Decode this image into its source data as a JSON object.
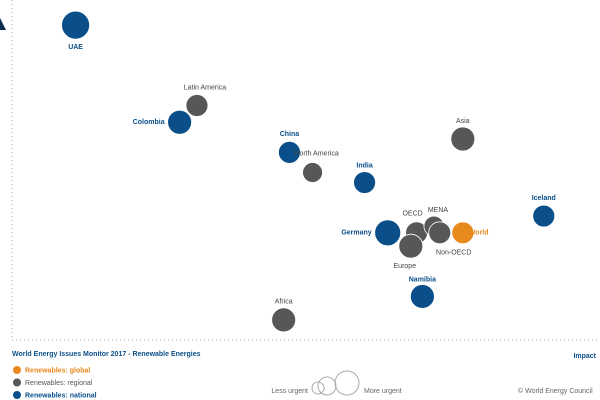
{
  "chart_data": {
    "type": "scatter",
    "title": "World Energy Issues Monitor 2017 - Renewable Energies",
    "x_label": "Impact",
    "size_legend": {
      "low": "Less urgent",
      "high": "More urgent"
    },
    "source": "© World Energy Council",
    "xlim": [
      0,
      10
    ],
    "ylim": [
      0,
      10
    ],
    "series": [
      {
        "name": "Renewables: global",
        "color": "#e8891d",
        "labels": [
          "World"
        ],
        "x": [
          7.8
        ],
        "values": [
          3.2
        ],
        "sizes": [
          11
        ]
      },
      {
        "name": "Renewables: regional",
        "color": "#575757",
        "labels": [
          "Latin America",
          "North America",
          "Asia",
          "OECD",
          "MENA",
          "Non-OECD",
          "Europe",
          "Africa"
        ],
        "x": [
          3.2,
          5.2,
          7.8,
          7.0,
          7.3,
          7.4,
          6.9,
          4.7
        ],
        "values": [
          7.0,
          5.0,
          6.0,
          3.2,
          3.4,
          3.2,
          2.8,
          0.6
        ],
        "sizes": [
          11,
          10,
          12,
          11,
          10,
          11,
          12,
          12
        ]
      },
      {
        "name": "Renewables: national",
        "color": "#0a4f8a",
        "labels": [
          "UAE",
          "Colombia",
          "China",
          "India",
          "Germany",
          "Namibia",
          "Iceland"
        ],
        "x": [
          1.1,
          2.9,
          4.8,
          6.1,
          6.5,
          7.1,
          9.2
        ],
        "values": [
          9.4,
          6.5,
          5.6,
          4.7,
          3.2,
          1.3,
          3.7
        ],
        "sizes": [
          14,
          12,
          11,
          11,
          13,
          12,
          11
        ]
      }
    ]
  }
}
